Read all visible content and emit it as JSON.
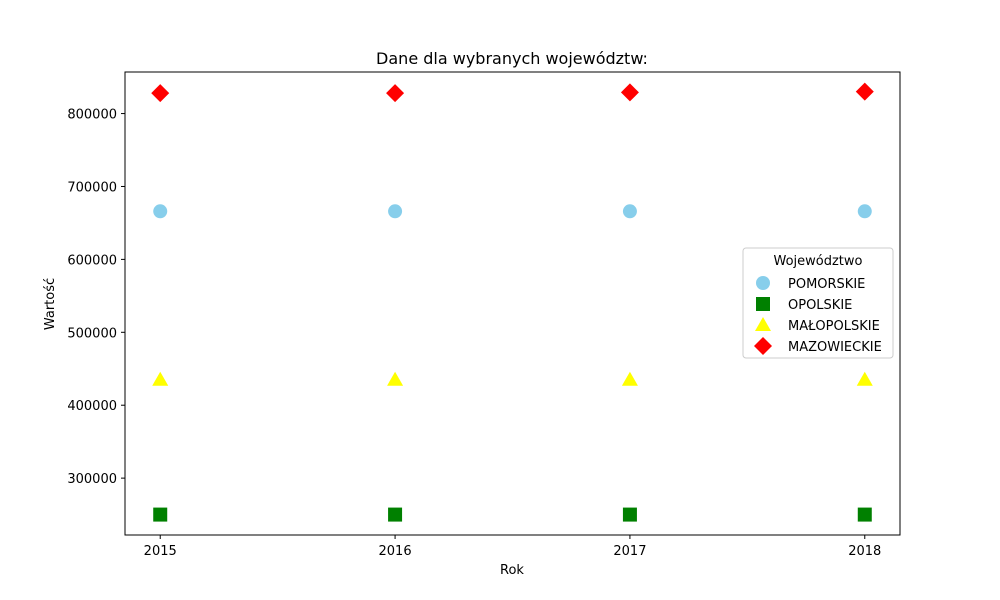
{
  "chart_data": {
    "type": "scatter",
    "title": "Dane dla wybranych województw:",
    "xlabel": "Rok",
    "ylabel": "Wartość",
    "x": [
      2015,
      2016,
      2017,
      2018
    ],
    "xlim": [
      2014.85,
      2018.15
    ],
    "ylim": [
      222000,
      857000
    ],
    "yticks": [
      300000,
      400000,
      500000,
      600000,
      700000,
      800000
    ],
    "grid": false,
    "legend": {
      "title": "Województwo",
      "placement": "center-right"
    },
    "series": [
      {
        "name": "POMORSKIE",
        "marker": "circle",
        "color": "#87ceeb",
        "values": [
          666000,
          666000,
          666000,
          666000
        ]
      },
      {
        "name": "OPOLSKIE",
        "marker": "square",
        "color": "#008000",
        "values": [
          250000,
          250000,
          250000,
          250000
        ]
      },
      {
        "name": "MAŁOPOLSKIE",
        "marker": "triangle",
        "color": "#ffff00",
        "values": [
          435000,
          435000,
          435000,
          435000
        ]
      },
      {
        "name": "MAZOWIECKIE",
        "marker": "diamond",
        "color": "#ff0000",
        "values": [
          828000,
          828000,
          829000,
          830000
        ]
      }
    ]
  }
}
